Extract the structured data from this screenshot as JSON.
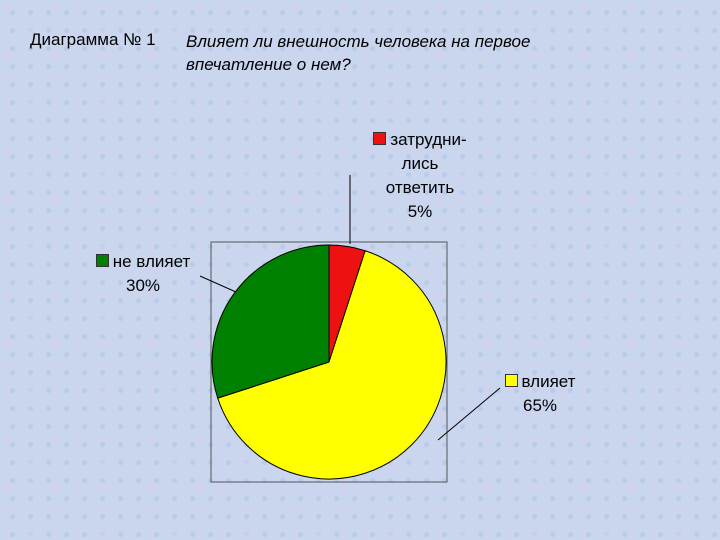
{
  "heading": "Диаграмма № 1",
  "chart_data": {
    "type": "pie",
    "title": "Влияет ли внешность человека на первое впечатление о нем?",
    "categories": [
      "затрудни-\nлись\nответить",
      "влияет",
      "не влияет"
    ],
    "values": [
      5,
      65,
      30
    ],
    "value_labels": [
      "5%",
      "65%",
      "30%"
    ],
    "colors": [
      "#ee1111",
      "#ffff00",
      "#008000"
    ]
  }
}
